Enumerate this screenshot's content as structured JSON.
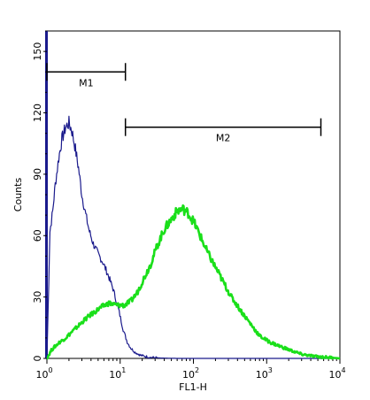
{
  "chart_data": {
    "type": "line",
    "title": "",
    "xlabel": "FL1-H",
    "ylabel": "Counts",
    "x_scale": "log",
    "xlim": [
      1,
      10000
    ],
    "ylim": [
      0,
      160
    ],
    "x_ticks": [
      {
        "base": "10",
        "exp": "0",
        "value": 1
      },
      {
        "base": "10",
        "exp": "1",
        "value": 10
      },
      {
        "base": "10",
        "exp": "2",
        "value": 100
      },
      {
        "base": "10",
        "exp": "3",
        "value": 1000
      },
      {
        "base": "10",
        "exp": "4",
        "value": 10000
      }
    ],
    "y_ticks": [
      "0",
      "30",
      "60",
      "90",
      "120",
      "150"
    ],
    "y_tick_values": [
      0,
      30,
      60,
      90,
      120,
      150
    ],
    "grid": false,
    "gates": [
      {
        "label": "M1",
        "x_start": 1,
        "x_end": 11.8,
        "y": 140
      },
      {
        "label": "M2",
        "x_start": 11.8,
        "x_end": 5500,
        "y": 113
      }
    ],
    "series": [
      {
        "color": "#1a1a8c",
        "x": [
          1,
          1.1,
          1.2,
          1.3,
          1.45,
          1.6,
          1.8,
          2.0,
          2.2,
          2.4,
          2.7,
          3.0,
          3.4,
          3.8,
          4.3,
          5.0,
          5.8,
          6.8,
          8.0,
          9.5,
          11,
          12.5,
          14,
          16,
          19,
          22,
          26,
          35,
          60,
          150,
          1000,
          10000
        ],
        "y": [
          0,
          62,
          72,
          85,
          98,
          107,
          113,
          115,
          111,
          104,
          93,
          80,
          70,
          62,
          56,
          51,
          47,
          41,
          34,
          24,
          14,
          8,
          5,
          3,
          1.5,
          1,
          0.5,
          0.2,
          0,
          0,
          0,
          0
        ]
      },
      {
        "color": "#1adf1a",
        "x": [
          1,
          1.15,
          1.3,
          1.5,
          1.8,
          2.2,
          2.7,
          3.3,
          4.2,
          5.5,
          7.0,
          9.0,
          11.5,
          14,
          17,
          21,
          26,
          32,
          40,
          50,
          60,
          72,
          85,
          100,
          120,
          150,
          190,
          250,
          330,
          450,
          600,
          800,
          1100,
          1500,
          2100,
          3000,
          4500,
          7000,
          10000
        ],
        "y": [
          0,
          4,
          6,
          8,
          10,
          13,
          16,
          19,
          22,
          25,
          27,
          26,
          26,
          28,
          32,
          39,
          46,
          55,
          63,
          68,
          72,
          73,
          71,
          67,
          61,
          53,
          46,
          38,
          30,
          23,
          17,
          11,
          8,
          6,
          4,
          2,
          1,
          0.5,
          0
        ]
      }
    ]
  }
}
